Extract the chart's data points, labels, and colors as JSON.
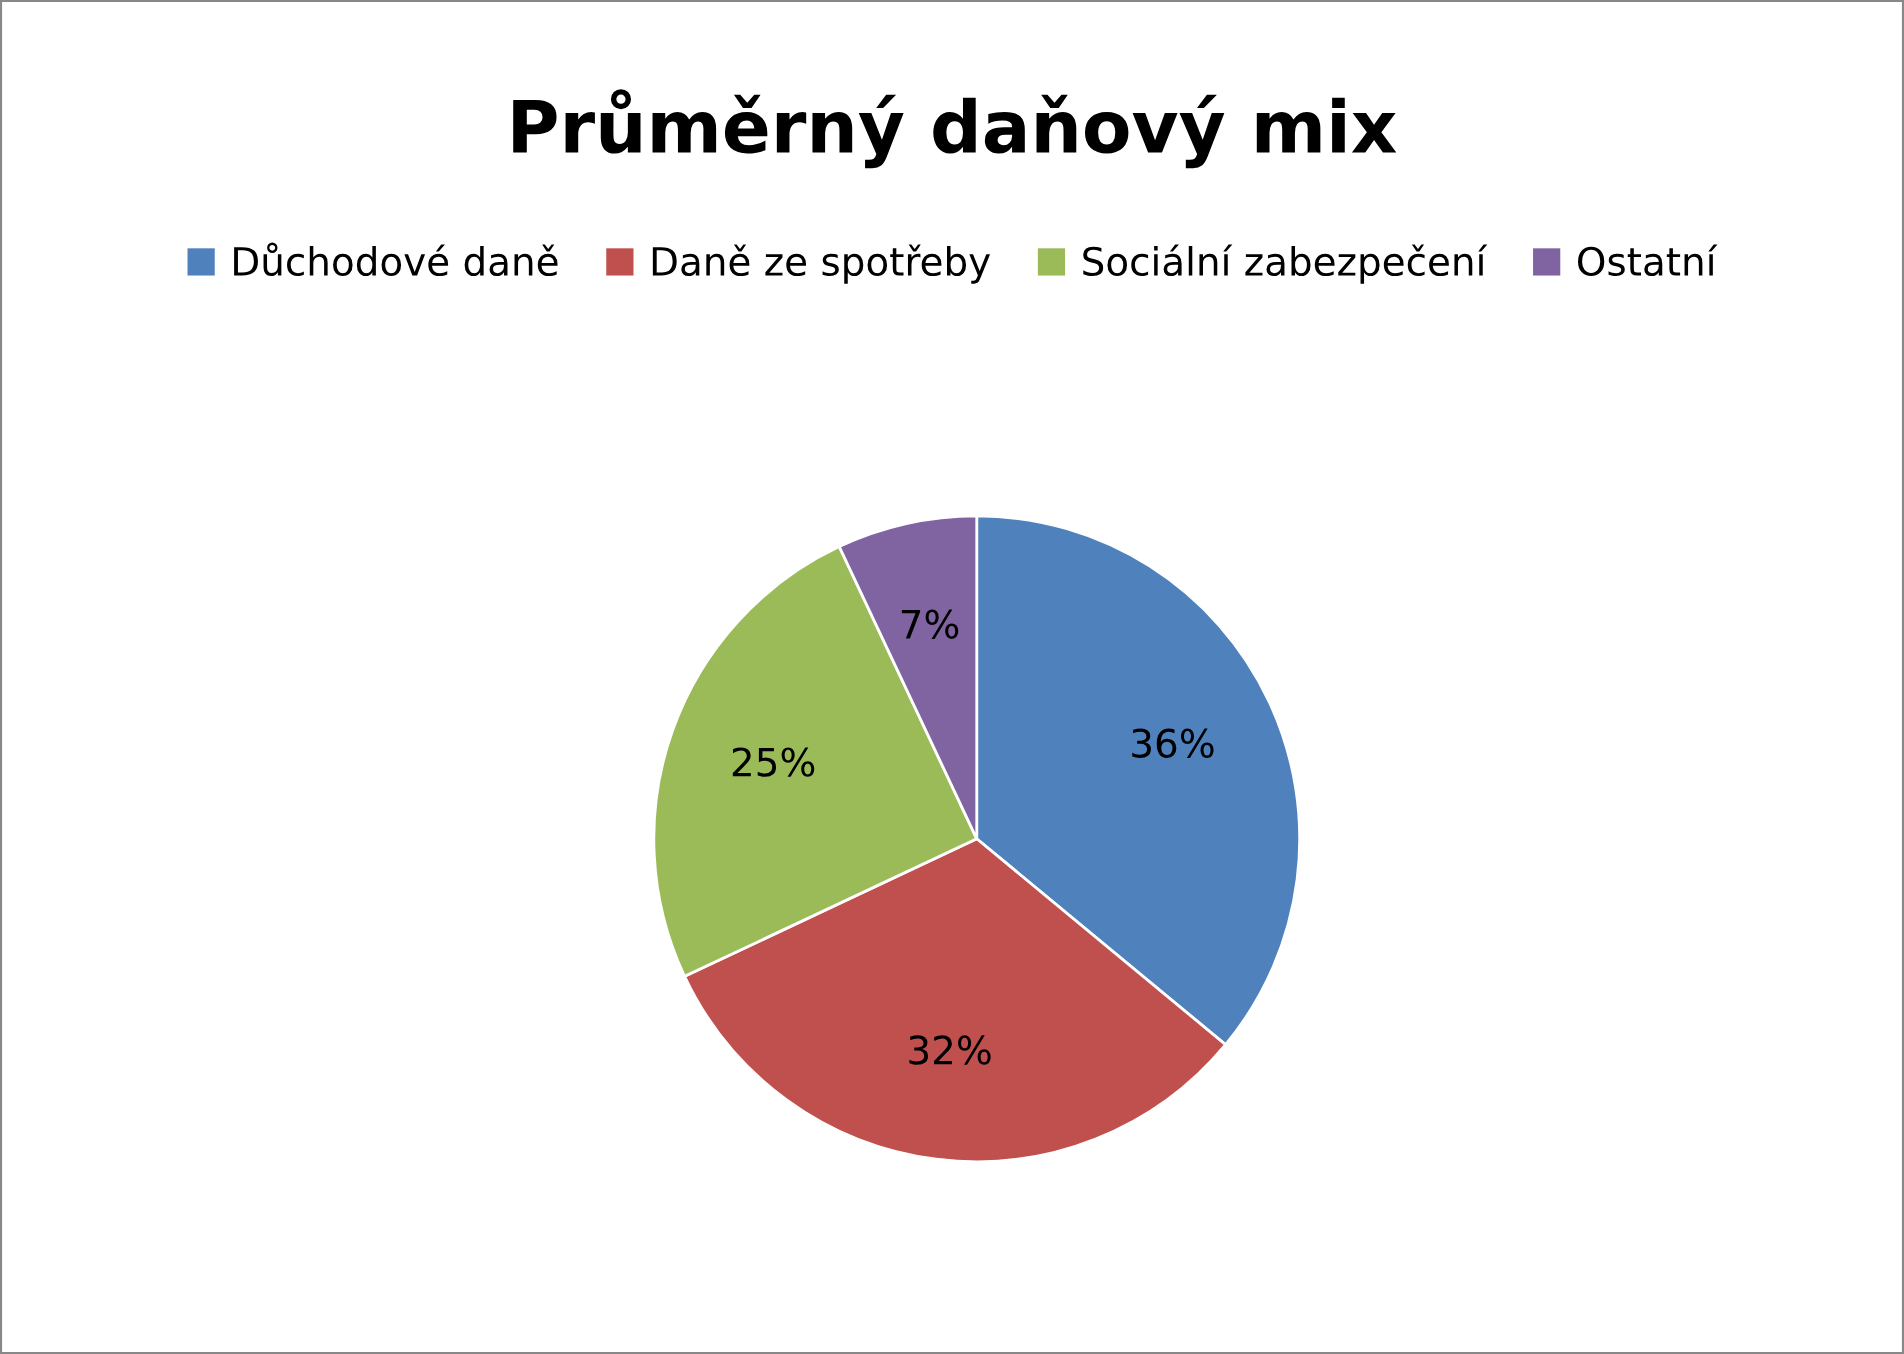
{
  "chart_data": {
    "type": "pie",
    "title": "Průměrný daňový mix",
    "categories": [
      "Důchodové daně",
      "Daně ze spotřeby",
      "Sociální zabezpečení",
      "Ostatní"
    ],
    "values": [
      36,
      32,
      25,
      7
    ],
    "colors": [
      "#4f81bd",
      "#c0504d",
      "#9bbb59",
      "#8064a2"
    ],
    "value_labels": [
      "36%",
      "32%",
      "25%",
      "7%"
    ],
    "legend": "top"
  }
}
